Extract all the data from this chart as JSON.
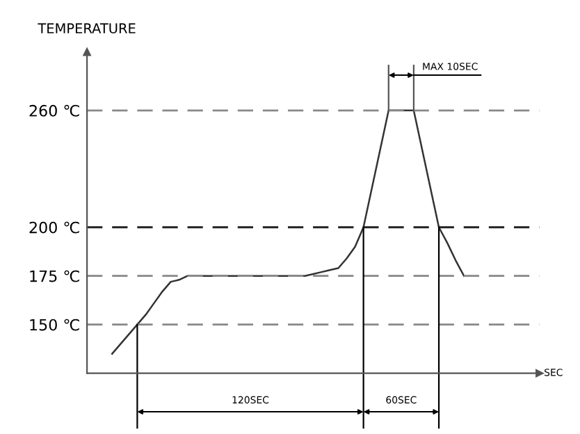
{
  "chart_data": {
    "type": "line",
    "ylabel": "TEMPERATURE",
    "categories": [
      null,
      null,
      null,
      null,
      null,
      null,
      null,
      null,
      null,
      null,
      null,
      null,
      null,
      null,
      null,
      null,
      null,
      null,
      null,
      null,
      null,
      null,
      null,
      null,
      null,
      null,
      null,
      null,
      null,
      null,
      null,
      null,
      null,
      null,
      null,
      null,
      null,
      null,
      null,
      null,
      null,
      null,
      null
    ],
    "series": [
      {
        "color": "#333333",
        "values": [
          135,
          140,
          145,
          150,
          155,
          161,
          167,
          172,
          173,
          175,
          175,
          175,
          175,
          175,
          175,
          175,
          175,
          175,
          175,
          175,
          175,
          175,
          175,
          175,
          176,
          177,
          178,
          179,
          184,
          190,
          200,
          220,
          240,
          260,
          260,
          260,
          260,
          240,
          220,
          200,
          192,
          183,
          175
        ]
      }
    ],
    "ylim": [
      125,
      290
    ],
    "yticks": [
      {
        "value": 150,
        "label": "150 ℃"
      },
      {
        "value": 175,
        "label": "175 ℃"
      },
      {
        "value": 200,
        "label": "200 ℃"
      },
      {
        "value": 260,
        "label": "260 ℃"
      }
    ],
    "tick_labels": "y",
    "grid": false,
    "marker": "none",
    "line_style": "solid",
    "ref_lines": [
      {
        "axis": "y",
        "value": 150,
        "color": "#888888",
        "line_style": "dashed"
      },
      {
        "axis": "y",
        "value": 175,
        "color": "#888888",
        "line_style": "dashed"
      },
      {
        "axis": "y",
        "value": 200,
        "color": "#222222",
        "line_style": "dashed"
      },
      {
        "axis": "y",
        "value": 260,
        "color": "#888888",
        "line_style": "dashed"
      }
    ],
    "annotations": [
      "120SEC",
      "60SEC",
      "MAX 10SEC",
      "SEC"
    ]
  }
}
